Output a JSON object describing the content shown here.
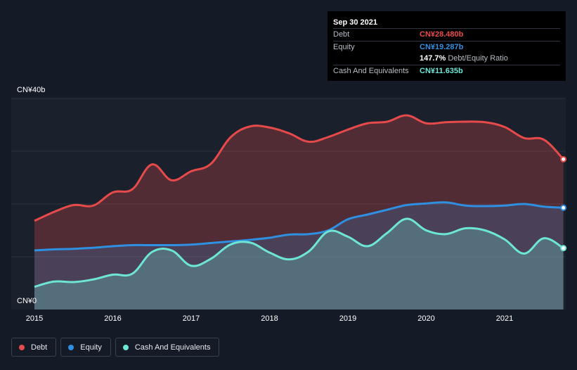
{
  "tooltip": {
    "date": "Sep 30 2021",
    "debt_label": "Debt",
    "debt_value": "CN¥28.480b",
    "equity_label": "Equity",
    "equity_value": "CN¥19.287b",
    "ratio_value": "147.7%",
    "ratio_label": "Debt/Equity Ratio",
    "cash_label": "Cash And Equivalents",
    "cash_value": "CN¥11.635b"
  },
  "legend": {
    "debt": "Debt",
    "equity": "Equity",
    "cash": "Cash And Equivalents"
  },
  "colors": {
    "debt": "#e64a4a",
    "equity": "#2f8fe0",
    "cash": "#6ee6d6",
    "background": "#151b26"
  },
  "chart_data": {
    "type": "area",
    "y_unit": "CN¥ billions",
    "ylim": [
      0,
      40
    ],
    "ytick_labels": [
      "CN¥0",
      "CN¥40b"
    ],
    "xtick_labels": [
      "2015",
      "2016",
      "2017",
      "2018",
      "2019",
      "2020",
      "2021"
    ],
    "xlim": [
      2015.0,
      2021.75
    ],
    "grid": true,
    "legend_position": "bottom-left",
    "series": [
      {
        "name": "Debt",
        "color_key": "debt",
        "x": [
          2015.0,
          2015.25,
          2015.5,
          2015.75,
          2016.0,
          2016.25,
          2016.5,
          2016.75,
          2017.0,
          2017.25,
          2017.5,
          2017.75,
          2018.0,
          2018.25,
          2018.5,
          2018.75,
          2019.0,
          2019.25,
          2019.5,
          2019.75,
          2020.0,
          2020.25,
          2020.5,
          2020.75,
          2021.0,
          2021.25,
          2021.5,
          2021.75
        ],
        "values": [
          16.8,
          18.5,
          19.8,
          19.7,
          22.2,
          22.8,
          27.5,
          24.5,
          26.2,
          27.6,
          32.6,
          34.7,
          34.5,
          33.4,
          31.8,
          32.7,
          34.1,
          35.3,
          35.6,
          36.8,
          35.3,
          35.5,
          35.6,
          35.5,
          34.6,
          32.5,
          32.2,
          28.48
        ]
      },
      {
        "name": "Equity",
        "color_key": "equity",
        "x": [
          2015.0,
          2015.25,
          2015.5,
          2015.75,
          2016.0,
          2016.25,
          2016.5,
          2016.75,
          2017.0,
          2017.25,
          2017.5,
          2017.75,
          2018.0,
          2018.25,
          2018.5,
          2018.75,
          2019.0,
          2019.25,
          2019.5,
          2019.75,
          2020.0,
          2020.25,
          2020.5,
          2020.75,
          2021.0,
          2021.25,
          2021.5,
          2021.75
        ],
        "values": [
          11.2,
          11.4,
          11.5,
          11.7,
          12.0,
          12.2,
          12.2,
          12.2,
          12.3,
          12.6,
          12.9,
          13.2,
          13.6,
          14.2,
          14.3,
          15.0,
          17.1,
          18.0,
          18.9,
          19.8,
          20.1,
          20.3,
          19.7,
          19.6,
          19.7,
          20.0,
          19.5,
          19.287
        ]
      },
      {
        "name": "Cash And Equivalents",
        "color_key": "cash",
        "x": [
          2015.0,
          2015.25,
          2015.5,
          2015.75,
          2016.0,
          2016.25,
          2016.5,
          2016.75,
          2017.0,
          2017.25,
          2017.5,
          2017.75,
          2018.0,
          2018.25,
          2018.5,
          2018.75,
          2019.0,
          2019.25,
          2019.5,
          2019.75,
          2020.0,
          2020.25,
          2020.5,
          2020.75,
          2021.0,
          2021.25,
          2021.5,
          2021.75
        ],
        "values": [
          4.3,
          5.3,
          5.2,
          5.7,
          6.6,
          6.8,
          10.9,
          11.2,
          8.3,
          9.6,
          12.3,
          12.7,
          10.8,
          9.5,
          11.0,
          14.8,
          13.8,
          12.0,
          14.5,
          17.2,
          15.0,
          14.3,
          15.4,
          15.0,
          13.3,
          10.6,
          13.5,
          11.635
        ]
      }
    ]
  }
}
